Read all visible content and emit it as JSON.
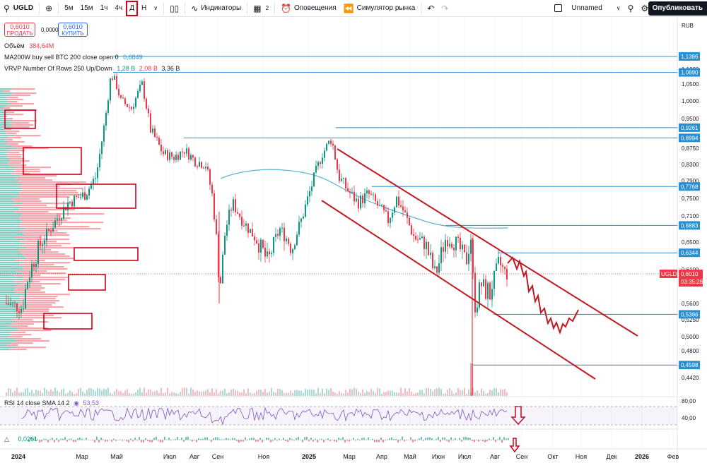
{
  "toolbar": {
    "symbol": "UGLD",
    "intervals": [
      "5м",
      "15м",
      "1ч",
      "4ч",
      "Д",
      "Н"
    ],
    "active_interval": "Д",
    "indicators_label": "Индикаторы",
    "layouts_count": "2",
    "alerts_label": "Оповещения",
    "replay_label": "Симулятор рынка",
    "layout_name": "Unnamed",
    "publish_label": "Опубликовать"
  },
  "trade": {
    "sell_price": "0,6010",
    "sell_label": "ПРОДАТЬ",
    "spread": "0,0000",
    "buy_price": "0,6010",
    "buy_label": "КУПИТЬ"
  },
  "legend": {
    "volume_label": "Объём",
    "volume_value": "384,64M",
    "ma_label": "MA200W buy sell BTC 200 close open 0",
    "ma_value": "0,6849",
    "vrvp_label": "VRVP Number Of Rows 250 Up/Down",
    "vrvp_up": "1,28 B",
    "vrvp_down": "2,08 B",
    "vrvp_total": "3,36 B"
  },
  "rsi": {
    "label": "RSI 14 close SMA 14 2",
    "value": "53,53"
  },
  "macd": {
    "value": "0,0261"
  },
  "price_axis": {
    "currency": "RUB",
    "ticks": [
      "1,1000",
      "1,0500",
      "1,0000",
      "0,9500",
      "0,9000",
      "0,8750",
      "0,8300",
      "0,7900",
      "0,7500",
      "0,7100",
      "0,6500",
      "0,6100",
      "0,5800",
      "0,5600",
      "0,5250",
      "0,5000",
      "0,4800",
      "0,4420"
    ],
    "tick_values": [
      1.1,
      1.05,
      1.0,
      0.95,
      0.9,
      0.875,
      0.83,
      0.79,
      0.75,
      0.71,
      0.65,
      0.61,
      0.58,
      0.56,
      0.525,
      0.5,
      0.48,
      0.442
    ],
    "level_labels": [
      "1,1386",
      "1,0890",
      "0,9261",
      "0,8994",
      "0,7768",
      "0,6883",
      "0,6344",
      "0,5366",
      "0,4598"
    ],
    "level_values": [
      1.1386,
      1.089,
      0.9261,
      0.8994,
      0.7768,
      0.6883,
      0.6344,
      0.5366,
      0.4598
    ],
    "current_symbol": "UGLD",
    "current_price": "0,6010",
    "current_value": 0.601,
    "countdown": "03:35:28",
    "rsi_ticks": [
      "80,00",
      "40,00"
    ]
  },
  "time_axis": {
    "labels": [
      "2024",
      "Мар",
      "Май",
      "Июл",
      "Авг",
      "Сен",
      "Ноя",
      "2025",
      "Мар",
      "Апр",
      "Май",
      "Июн",
      "Июл",
      "Авг",
      "Сен",
      "Окт",
      "Ноя",
      "Дек",
      "2026",
      "Фев"
    ]
  },
  "colors": {
    "up": "#089981",
    "down": "#f23645",
    "level": "#2a8fd1",
    "channel": "#c2181f",
    "annotation": "#d0021b",
    "ma": "#5bb5cf",
    "rsi": "#7e57c2"
  }
}
